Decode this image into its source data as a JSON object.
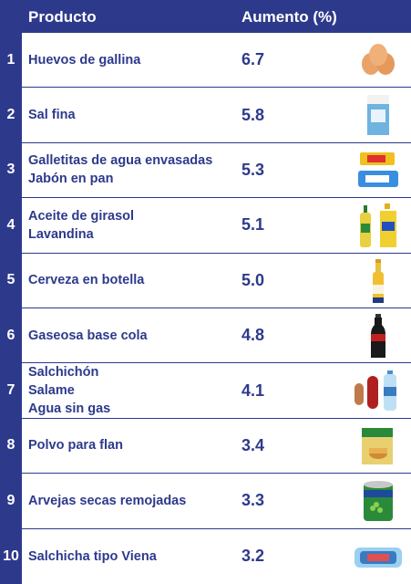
{
  "chart_data": {
    "type": "table",
    "columns": [
      "Producto",
      "Aumento (%)"
    ],
    "rows": [
      {
        "rank": "1",
        "products": [
          "Huevos de gallina"
        ],
        "value": "6.7",
        "icon": "eggs-icon"
      },
      {
        "rank": "2",
        "products": [
          "Sal fina"
        ],
        "value": "5.8",
        "icon": "salt-box-icon"
      },
      {
        "rank": "3",
        "products": [
          "Galletitas de agua envasadas",
          "Jabón en pan"
        ],
        "value": "5.3",
        "icon": "crackers-soap-icon"
      },
      {
        "rank": "4",
        "products": [
          "Aceite de girasol",
          "Lavandina"
        ],
        "value": "5.1",
        "icon": "oil-bleach-bottles-icon"
      },
      {
        "rank": "5",
        "products": [
          "Cerveza en botella"
        ],
        "value": "5.0",
        "icon": "beer-bottle-icon"
      },
      {
        "rank": "6",
        "products": [
          "Gaseosa base cola"
        ],
        "value": "4.8",
        "icon": "cola-bottle-icon"
      },
      {
        "rank": "7",
        "products": [
          "Salchichón",
          "Salame",
          "Agua sin gas"
        ],
        "value": "4.1",
        "icon": "salami-water-icon"
      },
      {
        "rank": "8",
        "products": [
          "Polvo para flan"
        ],
        "value": "3.4",
        "icon": "flan-box-icon"
      },
      {
        "rank": "9",
        "products": [
          "Arvejas secas remojadas"
        ],
        "value": "3.3",
        "icon": "peas-can-icon"
      },
      {
        "rank": "10",
        "products": [
          "Salchicha tipo Viena"
        ],
        "value": "3.2",
        "icon": "sausage-pack-icon"
      }
    ]
  },
  "colors": {
    "accent": "#2d3a8c",
    "header_text": "#ffffff"
  }
}
